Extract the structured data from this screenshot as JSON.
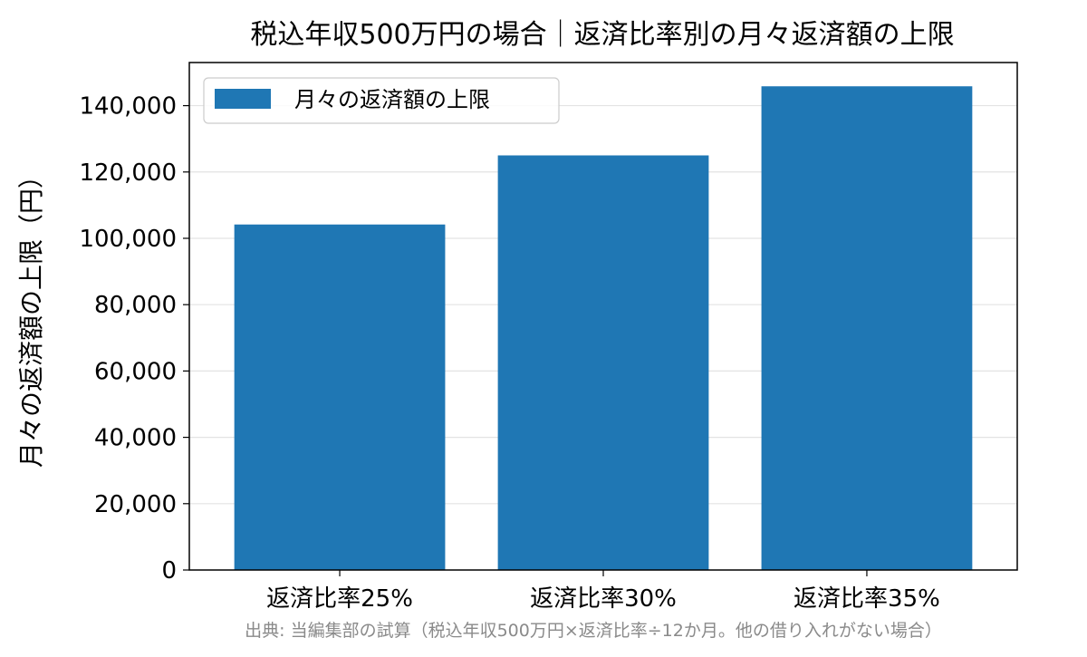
{
  "chart_data": {
    "type": "bar",
    "title": "税込年収500万円の場合｜返済比率別の月々返済額の上限",
    "xlabel": "",
    "ylabel": "月々の返済額の上限（円）",
    "categories": [
      "返済比率25%",
      "返済比率30%",
      "返済比率35%"
    ],
    "series": [
      {
        "name": "月々の返済額の上限",
        "values": [
          104167,
          125000,
          145833
        ]
      }
    ],
    "ylim": [
      0,
      153000
    ],
    "yticks": [
      0,
      20000,
      40000,
      60000,
      80000,
      100000,
      120000,
      140000
    ],
    "ytick_labels": [
      "0",
      "20,000",
      "40,000",
      "60,000",
      "80,000",
      "100,000",
      "120,000",
      "140,000"
    ],
    "grid": "y-only",
    "legend_position": "upper-left",
    "bar_color": "#1f77b4",
    "source_note": "出典: 当編集部の試算（税込年収500万円×返済比率÷12か月。他の借り入れがない場合）"
  }
}
